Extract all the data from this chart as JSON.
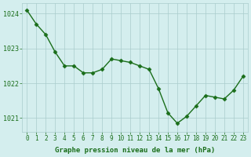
{
  "x": [
    0,
    1,
    2,
    3,
    4,
    5,
    6,
    7,
    8,
    9,
    10,
    11,
    12,
    13,
    14,
    15,
    16,
    17,
    18,
    19,
    20,
    21,
    22,
    23
  ],
  "y": [
    1024.1,
    1023.7,
    1023.4,
    1022.9,
    1022.5,
    1022.5,
    1022.3,
    1022.3,
    1022.4,
    1022.7,
    1022.65,
    1022.6,
    1022.5,
    1022.4,
    1021.85,
    1021.15,
    1020.85,
    1021.05,
    1021.35,
    1021.65,
    1021.6,
    1021.55,
    1021.8,
    1022.2
  ],
  "line_color": "#1a6e1a",
  "marker_color": "#1a6e1a",
  "bg_color": "#d4eeee",
  "grid_color": "#aacccc",
  "axis_label_color": "#1a6e1a",
  "tick_label_color": "#1a6e1a",
  "xlabel": "Graphe pression niveau de la mer (hPa)",
  "ylim": [
    1020.6,
    1024.3
  ],
  "yticks": [
    1021,
    1022,
    1023,
    1024
  ],
  "xticks": [
    0,
    1,
    2,
    3,
    4,
    5,
    6,
    7,
    8,
    9,
    10,
    11,
    12,
    13,
    14,
    15,
    16,
    17,
    18,
    19,
    20,
    21,
    22,
    23
  ]
}
